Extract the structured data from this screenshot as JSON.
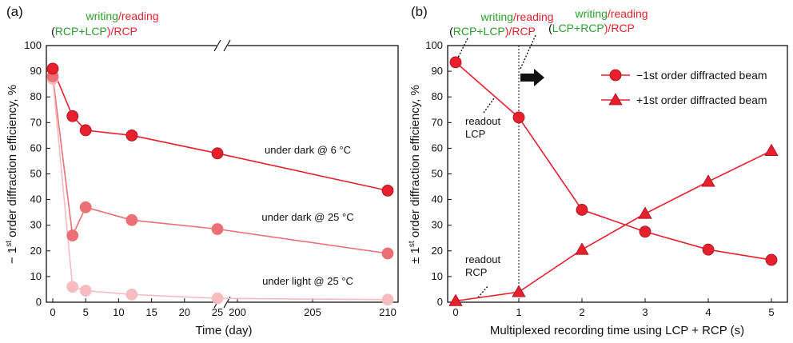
{
  "colors": {
    "red": "#e8202e",
    "green": "#2ca02c",
    "medium_red": "#ec6f76",
    "light_red": "#f7bcbf",
    "axis": "#111111"
  },
  "panel_a": {
    "label": "(a)",
    "header_line1": {
      "writing": "writing",
      "slash": "/",
      "reading": "reading"
    },
    "header_line2": {
      "open": "(",
      "rcp": "RCP",
      "plus": "+",
      "lcp": "LCP",
      "close": ")/",
      "rcp2": "RCP"
    },
    "xlabel": "Time (day)",
    "ylabel_parts": {
      "prefix": "− 1",
      "sup": "st",
      "suffix": " order diffraction efficiency, %"
    },
    "annotations": [
      "under dark @ 6 °C",
      "under dark @ 25 °C",
      "under light @ 25 °C"
    ],
    "break_mark": "//"
  },
  "panel_b": {
    "label": "(b)",
    "header1_line1": {
      "writing": "writing",
      "slash": "/",
      "reading": "reading"
    },
    "header1_line2": {
      "open": "(",
      "rcp": "RCP",
      "plus": "+",
      "lcp": "LCP",
      "close": ")/",
      "rcp2": "RCP"
    },
    "header2_line1": {
      "writing": "writing",
      "slash": "/",
      "reading": "reading"
    },
    "header2_line2": {
      "open": "(",
      "lcp": "LCP",
      "plus": "+",
      "rcp": "RCP",
      "close": ")/",
      "rcp2": "RCP"
    },
    "xlabel": "Multiplexed recording time using LCP + RCP (s)",
    "ylabel_parts": {
      "prefix": "± 1",
      "sup": "st",
      "suffix": " order diffraction efficiency, %"
    },
    "readout_lcp": [
      "readout",
      "LCP"
    ],
    "readout_rcp": [
      "readout",
      "RCP"
    ],
    "legend": [
      "−1st order diffracted beam",
      "+1st order diffracted beam"
    ]
  },
  "chart_data": [
    {
      "type": "line",
      "panel": "a",
      "x_ticks": [
        "0",
        "5",
        "10",
        "15",
        "20",
        "25",
        "200",
        "205",
        "210"
      ],
      "y_ticks": [
        "0",
        "10",
        "20",
        "30",
        "40",
        "50",
        "60",
        "70",
        "80",
        "90",
        "100"
      ],
      "ylim": [
        0,
        100
      ],
      "x_break": [
        25,
        200
      ],
      "series": [
        {
          "name": "under dark @ 6 °C",
          "color": "#e8202e",
          "x": [
            0,
            3,
            5,
            12,
            25,
            210
          ],
          "y": [
            91,
            72.5,
            67,
            65,
            58,
            43.5
          ]
        },
        {
          "name": "under dark @ 25 °C",
          "color": "#ec6f76",
          "x": [
            0,
            3,
            5,
            12,
            25,
            210
          ],
          "y": [
            88,
            26,
            37,
            32,
            28.5,
            19
          ]
        },
        {
          "name": "under light @ 25 °C",
          "color": "#f7bcbf",
          "x": [
            0,
            3,
            5,
            12,
            25,
            210
          ],
          "y": [
            87,
            6,
            4.5,
            3,
            1.5,
            1
          ]
        }
      ]
    },
    {
      "type": "line",
      "panel": "b",
      "x_ticks": [
        "0",
        "1",
        "2",
        "3",
        "4",
        "5"
      ],
      "y_ticks": [
        "0",
        "10",
        "20",
        "30",
        "40",
        "50",
        "60",
        "70",
        "80",
        "90",
        "100"
      ],
      "xlim": [
        0,
        5
      ],
      "ylim": [
        0,
        100
      ],
      "series": [
        {
          "name": "−1st order diffracted beam",
          "marker": "circle",
          "color": "#e8202e",
          "x": [
            0,
            1,
            2,
            3,
            4,
            5
          ],
          "y": [
            93.5,
            72,
            36,
            27.5,
            20.5,
            16.5
          ]
        },
        {
          "name": "+1st order diffracted beam",
          "marker": "triangle",
          "color": "#e8202e",
          "x": [
            0,
            1,
            2,
            3,
            4,
            5
          ],
          "y": [
            0.5,
            4,
            20.5,
            34.5,
            47,
            59
          ]
        }
      ]
    }
  ]
}
